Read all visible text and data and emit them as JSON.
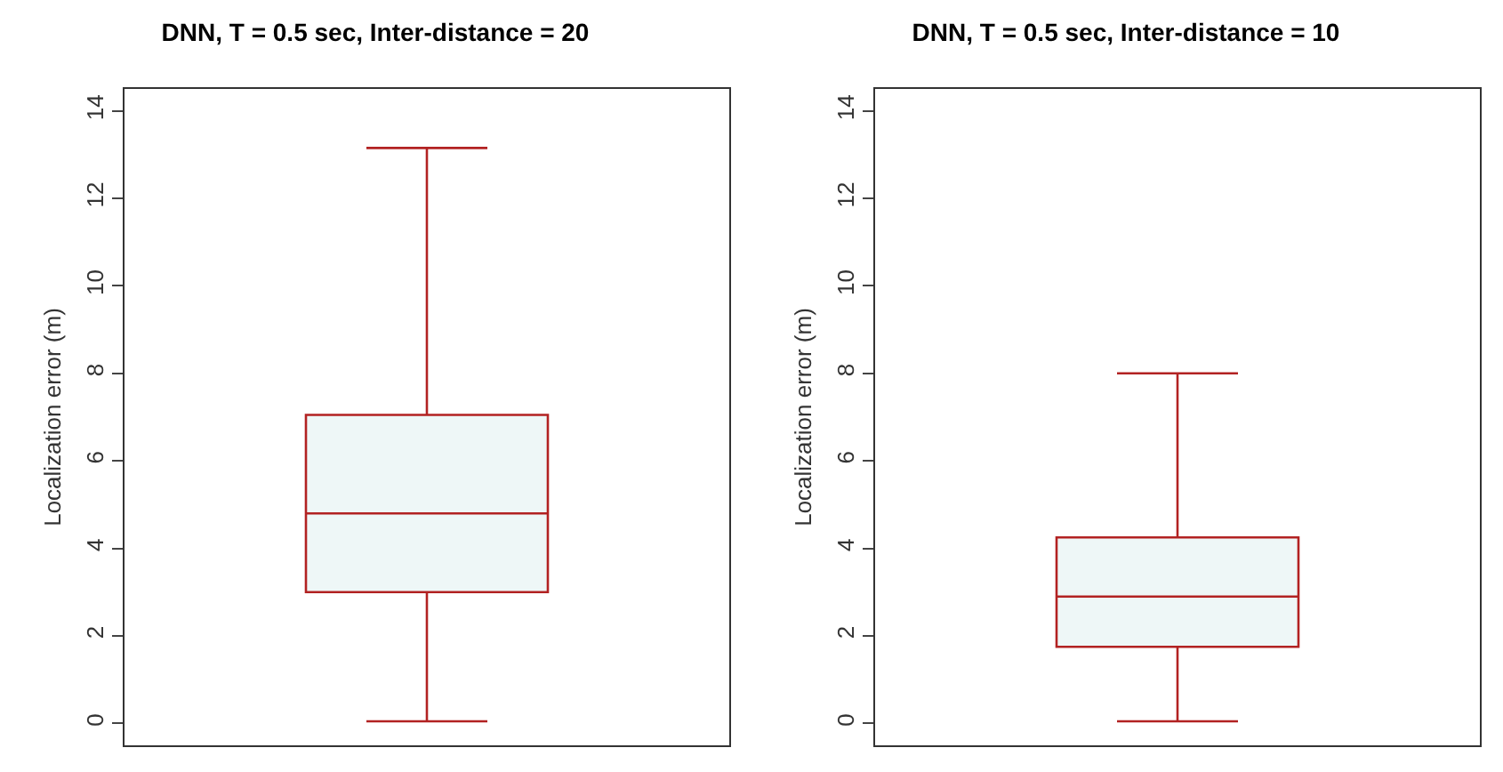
{
  "chart_data": [
    {
      "type": "box",
      "title": "DNN, T = 0.5 sec, Inter-distance = 20",
      "ylabel": "Localization error (m)",
      "categories": [
        null
      ],
      "series": [
        {
          "color": "#b22222",
          "boxes": [
            {
              "low": 0.05,
              "q1": 3.0,
              "median": 4.8,
              "q3": 7.05,
              "high": 13.15
            }
          ]
        }
      ],
      "ylim": [
        -0.5,
        14.5
      ],
      "yticks": [
        0,
        2,
        4,
        6,
        8,
        10,
        12,
        14
      ],
      "tick_labels": "y",
      "grid": false
    },
    {
      "type": "box",
      "title": "DNN, T = 0.5 sec, Inter-distance = 10",
      "ylabel": "Localization error (m)",
      "categories": [
        null
      ],
      "series": [
        {
          "color": "#b22222",
          "boxes": [
            {
              "low": 0.05,
              "q1": 1.75,
              "median": 2.9,
              "q3": 4.25,
              "high": 8.0
            }
          ]
        }
      ],
      "ylim": [
        -0.5,
        14.5
      ],
      "yticks": [
        0,
        2,
        4,
        6,
        8,
        10,
        12,
        14
      ],
      "tick_labels": "y",
      "grid": false
    }
  ]
}
